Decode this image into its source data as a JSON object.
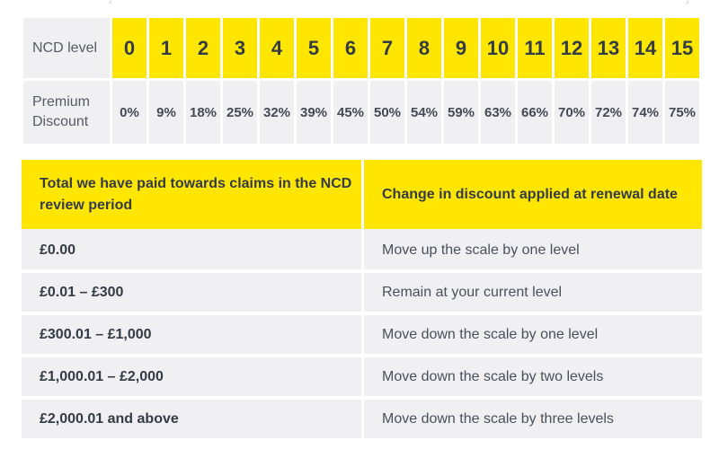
{
  "ncd": {
    "level_header": "NCD level",
    "discount_header": "Premium Discount",
    "levels": [
      "0",
      "1",
      "2",
      "3",
      "4",
      "5",
      "6",
      "7",
      "8",
      "9",
      "10",
      "11",
      "12",
      "13",
      "14",
      "15"
    ],
    "discounts": [
      "0%",
      "9%",
      "18%",
      "25%",
      "32%",
      "39%",
      "45%",
      "50%",
      "54%",
      "59%",
      "63%",
      "66%",
      "70%",
      "72%",
      "74%",
      "75%"
    ]
  },
  "claims": {
    "header_paid": "Total we have paid towards claims in the NCD review period",
    "header_change": "Change in discount applied at renewal date",
    "rows": [
      {
        "amount": "£0.00",
        "change": "Move up the scale by one level"
      },
      {
        "amount": "£0.01 – £300",
        "change": "Remain at your current level"
      },
      {
        "amount": "£300.01 – £1,000",
        "change": "Move down the scale by one level"
      },
      {
        "amount": "£1,000.01 – £2,000",
        "change": "Move down the scale by two levels"
      },
      {
        "amount": "£2,000.01 and above",
        "change": "Move down the scale by three levels"
      }
    ]
  },
  "colors": {
    "accent_yellow": "#ffe600",
    "cell_grey": "#f0f0f2",
    "text_dark": "#333b45"
  }
}
